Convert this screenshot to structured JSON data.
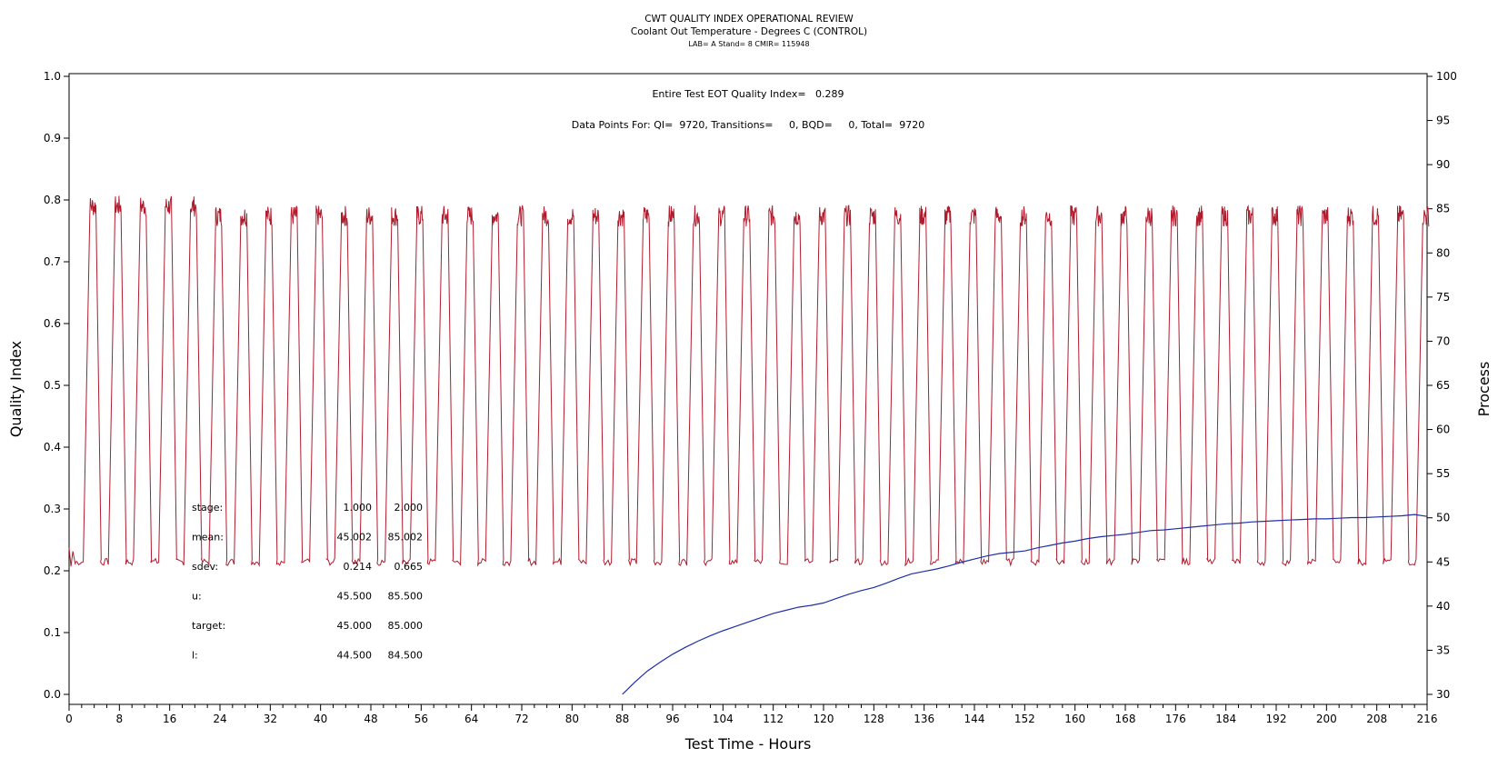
{
  "chart_data": {
    "type": "line",
    "title": "CWT QUALITY INDEX OPERATIONAL REVIEW",
    "subtitle": "Coolant Out Temperature - Degrees C (CONTROL)",
    "subtitle2": "LAB= A Stand= 8 CMIR= 115948",
    "xlabel": "Test Time - Hours",
    "ylabel": "Quality Index",
    "y2label": "Process",
    "xlim": [
      0,
      216
    ],
    "ylim": [
      0,
      1.0
    ],
    "y2lim": [
      30,
      100
    ],
    "xticks": [
      "0",
      "8",
      "16",
      "24",
      "32",
      "40",
      "48",
      "56",
      "64",
      "72",
      "80",
      "88",
      "96",
      "104",
      "112",
      "120",
      "128",
      "136",
      "144",
      "152",
      "160",
      "168",
      "176",
      "184",
      "192",
      "200",
      "208",
      "216"
    ],
    "yticks": [
      "0.0",
      "0.1",
      "0.2",
      "0.3",
      "0.4",
      "0.5",
      "0.6",
      "0.7",
      "0.8",
      "0.9",
      "1.0"
    ],
    "y2ticks": [
      "30",
      "35",
      "40",
      "45",
      "50",
      "55",
      "60",
      "65",
      "70",
      "75",
      "80",
      "85",
      "90",
      "95",
      "100"
    ],
    "annotations": {
      "quality_index": "Entire Test EOT Quality Index=   0.289",
      "data_points": "Data Points For: QI=  9720, Transitions=     0, BQD=     0, Total=  9720"
    },
    "stats": {
      "rows": [
        {
          "label": "stage:",
          "v1": "1.000",
          "v2": "2.000"
        },
        {
          "label": "mean:",
          "v1": "45.002",
          "v2": "85.002"
        },
        {
          "label": "sdev:",
          "v1": "0.214",
          "v2": "0.665"
        },
        {
          "label": "u:",
          "v1": "45.500",
          "v2": "85.500"
        },
        {
          "label": "target:",
          "v1": "45.000",
          "v2": "85.000"
        },
        {
          "label": "l:",
          "v1": "44.500",
          "v2": "84.500"
        }
      ]
    },
    "colors": {
      "process": "#b01c2e",
      "quality_index": "#1f2fa8"
    },
    "series": [
      {
        "axis": "y2",
        "pattern": "square-wave cycling between stages",
        "cycle_hours": 4,
        "cycle_count": 54,
        "low_level": 45.0,
        "high_level_first_5_cycles": 85.9,
        "high_level": 84.8,
        "dwell_high_hours": 1.0,
        "x_range": [
          0,
          216
        ]
      },
      {
        "axis": "y",
        "x": [
          88,
          90,
          92,
          94,
          96,
          98,
          100,
          102,
          104,
          106,
          108,
          110,
          112,
          114,
          116,
          118,
          120,
          122,
          124,
          126,
          128,
          130,
          132,
          134,
          136,
          138,
          140,
          142,
          144,
          146,
          148,
          150,
          152,
          154,
          156,
          158,
          160,
          162,
          164,
          166,
          168,
          170,
          172,
          174,
          176,
          178,
          180,
          182,
          184,
          186,
          188,
          190,
          192,
          194,
          196,
          198,
          200,
          202,
          204,
          206,
          208,
          210,
          212,
          214,
          216
        ],
        "values": [
          0.0,
          0.02,
          0.038,
          0.052,
          0.065,
          0.076,
          0.086,
          0.095,
          0.103,
          0.11,
          0.117,
          0.124,
          0.131,
          0.136,
          0.141,
          0.144,
          0.148,
          0.155,
          0.162,
          0.168,
          0.173,
          0.18,
          0.188,
          0.195,
          0.199,
          0.203,
          0.208,
          0.214,
          0.219,
          0.224,
          0.228,
          0.23,
          0.232,
          0.237,
          0.241,
          0.245,
          0.248,
          0.252,
          0.255,
          0.257,
          0.259,
          0.262,
          0.265,
          0.266,
          0.268,
          0.27,
          0.272,
          0.274,
          0.276,
          0.277,
          0.279,
          0.28,
          0.281,
          0.282,
          0.283,
          0.284,
          0.284,
          0.285,
          0.286,
          0.286,
          0.287,
          0.288,
          0.289,
          0.291,
          0.288
        ]
      }
    ]
  }
}
